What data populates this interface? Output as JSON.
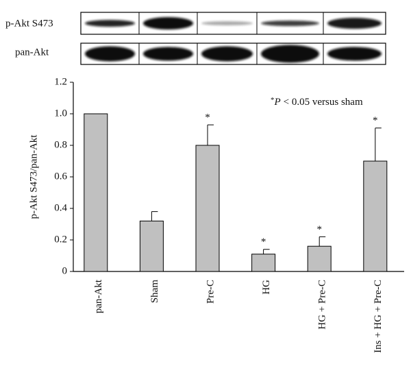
{
  "blots": {
    "rows": [
      "p-Akt S473",
      "pan-Akt"
    ]
  },
  "chart_data": {
    "type": "bar",
    "y_label": "p-Akt S473/pan-Akt",
    "categories": [
      "pan-Akt",
      "Sham",
      "Pre-C",
      "HG",
      "HG + Pre-C",
      "Ins + HG + Pre-C"
    ],
    "values": [
      1.0,
      0.32,
      0.8,
      0.11,
      0.16,
      0.7
    ],
    "errors": [
      null,
      0.06,
      0.13,
      0.03,
      0.06,
      0.21
    ],
    "significance": [
      null,
      null,
      "*",
      "*",
      "*",
      "*"
    ],
    "note": {
      "marker": "*",
      "symbol": "P",
      "text": "< 0.05 versus sham"
    },
    "color": "#c0c0c0",
    "ylim": [
      0,
      1.2
    ],
    "yticks": [
      0,
      0.2,
      0.4,
      0.6,
      0.8,
      {
        "value": 1,
        "label": "1.0"
      },
      1.2
    ]
  }
}
